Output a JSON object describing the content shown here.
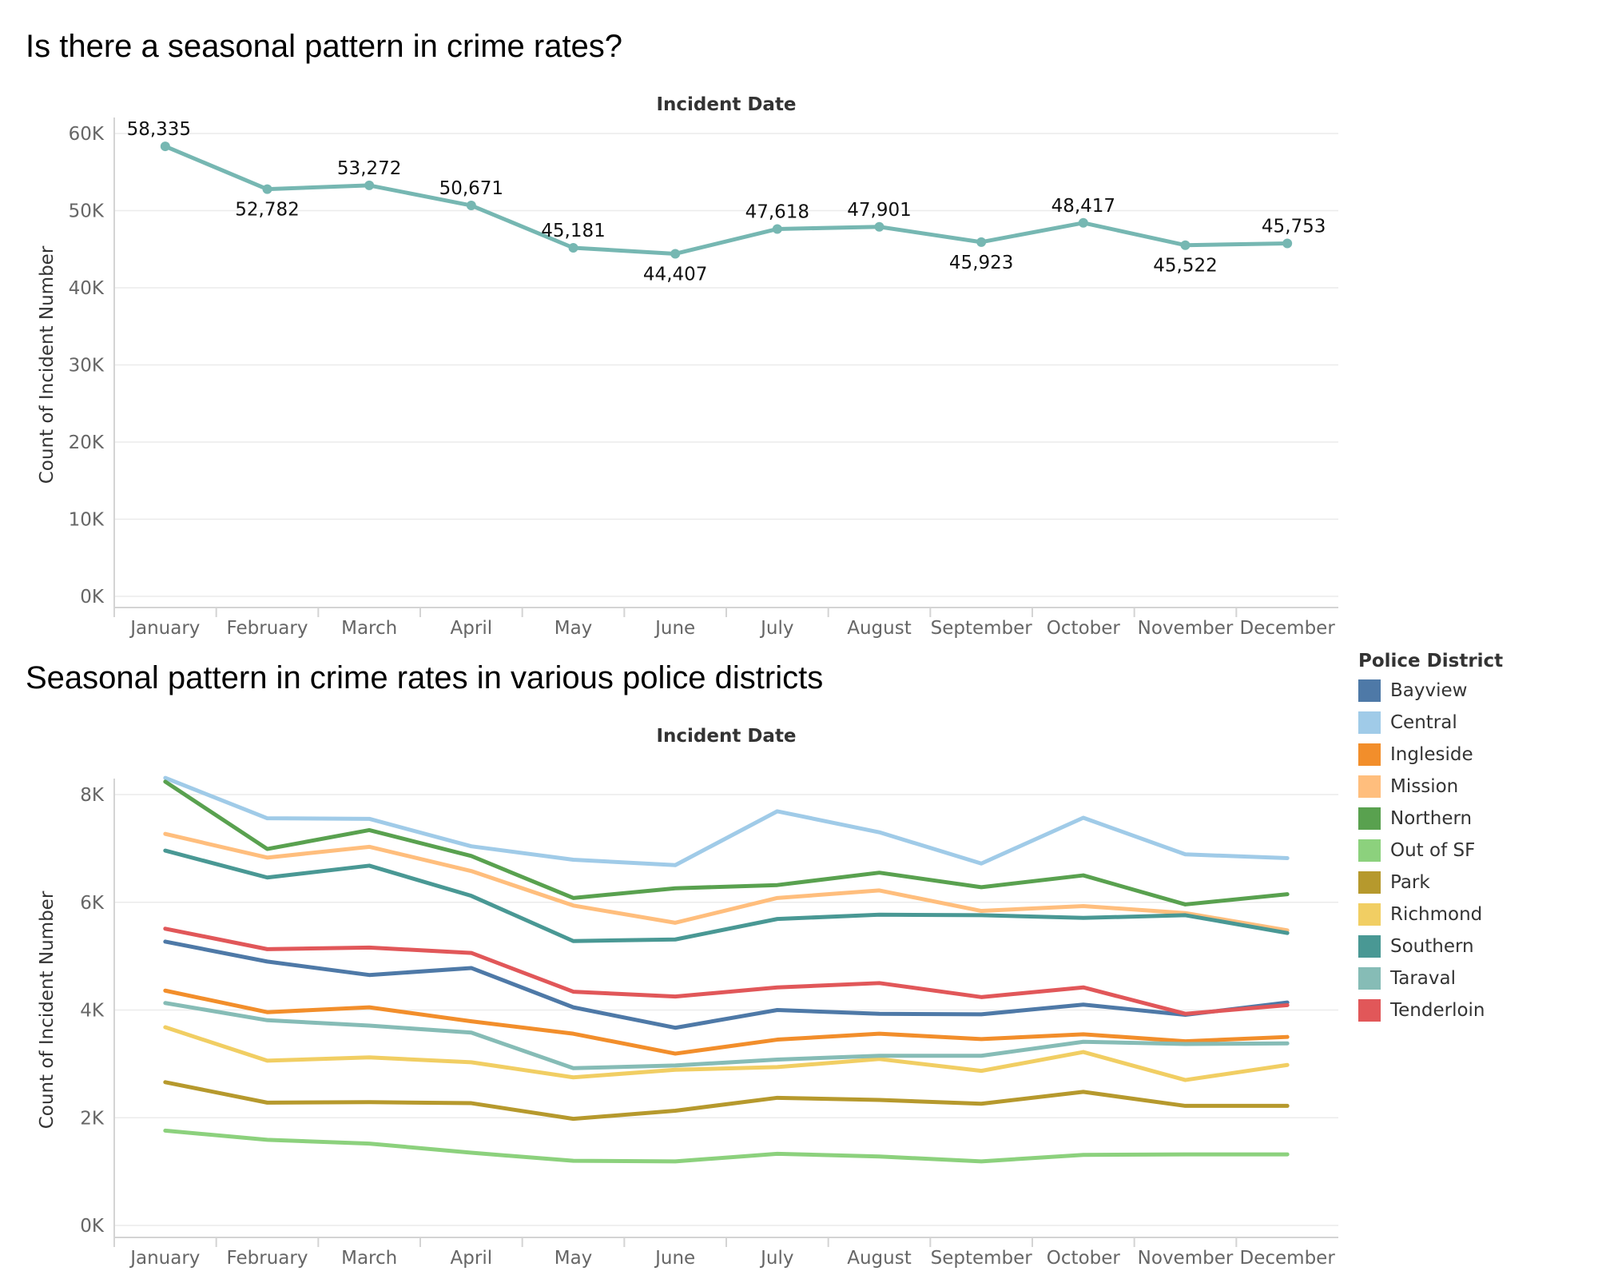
{
  "titles": {
    "top": "Is there a seasonal pattern in crime rates?",
    "bottom": "Seasonal pattern in crime rates in various police districts"
  },
  "legend": {
    "title": "Police District"
  },
  "chart_data": [
    {
      "type": "line",
      "title": "Is there a seasonal pattern in crime rates?",
      "header": "Incident Date",
      "ylabel": "Count of Incident Number",
      "categories": [
        "January",
        "February",
        "March",
        "April",
        "May",
        "June",
        "July",
        "August",
        "September",
        "October",
        "November",
        "December"
      ],
      "ylim": [
        0,
        60000
      ],
      "yticks": [
        0,
        10000,
        20000,
        30000,
        40000,
        50000,
        60000
      ],
      "ytick_labels": [
        "0K",
        "10K",
        "20K",
        "30K",
        "40K",
        "50K",
        "60K"
      ],
      "color": "#76b7b2",
      "series": [
        {
          "values": [
            58335,
            52782,
            53272,
            50671,
            45181,
            44407,
            47618,
            47901,
            45923,
            48417,
            45522,
            45753
          ],
          "labels": [
            "58,335",
            "52,782",
            "53,272",
            "50,671",
            "45,181",
            "44,407",
            "47,618",
            "47,901",
            "45,923",
            "48,417",
            "45,522",
            "45,753"
          ]
        }
      ],
      "grid": true
    },
    {
      "type": "line",
      "title": "Seasonal pattern in crime rates in various police districts",
      "header": "Incident Date",
      "ylabel": "Count of Incident Number",
      "categories": [
        "January",
        "February",
        "March",
        "April",
        "May",
        "June",
        "July",
        "August",
        "September",
        "October",
        "November",
        "December"
      ],
      "ylim": [
        0,
        8000
      ],
      "yticks": [
        0,
        2000,
        4000,
        6000,
        8000
      ],
      "ytick_labels": [
        "0K",
        "2K",
        "4K",
        "6K",
        "8K"
      ],
      "legend": "right",
      "grid": true,
      "series": [
        {
          "name": "Bayview",
          "color": "#4e79a7",
          "values": [
            5270,
            4900,
            4650,
            4780,
            4050,
            3670,
            4000,
            3930,
            3920,
            4100,
            3910,
            4140
          ]
        },
        {
          "name": "Central",
          "color": "#a0cbe8",
          "values": [
            8310,
            7560,
            7550,
            7040,
            6790,
            6690,
            7690,
            7300,
            6720,
            7570,
            6890,
            6820
          ]
        },
        {
          "name": "Ingleside",
          "color": "#f28e2b",
          "values": [
            4360,
            3960,
            4050,
            3790,
            3560,
            3190,
            3450,
            3560,
            3460,
            3550,
            3420,
            3500
          ]
        },
        {
          "name": "Mission",
          "color": "#ffbe7d",
          "values": [
            7270,
            6830,
            7030,
            6580,
            5940,
            5620,
            6080,
            6220,
            5840,
            5930,
            5800,
            5480
          ]
        },
        {
          "name": "Northern",
          "color": "#59a14f",
          "values": [
            8240,
            6990,
            7340,
            6860,
            6080,
            6260,
            6320,
            6550,
            6280,
            6500,
            5960,
            6150
          ]
        },
        {
          "name": "Out of SF",
          "color": "#8cd17d",
          "values": [
            1760,
            1590,
            1520,
            1350,
            1200,
            1190,
            1330,
            1280,
            1190,
            1310,
            1320,
            1320
          ]
        },
        {
          "name": "Park",
          "color": "#b6992d",
          "values": [
            2660,
            2280,
            2290,
            2270,
            1980,
            2130,
            2370,
            2330,
            2260,
            2480,
            2220,
            2220
          ]
        },
        {
          "name": "Richmond",
          "color": "#f1ce63",
          "values": [
            3680,
            3060,
            3120,
            3030,
            2750,
            2890,
            2940,
            3090,
            2870,
            3220,
            2700,
            2980
          ]
        },
        {
          "name": "Southern",
          "color": "#499894",
          "values": [
            6960,
            6460,
            6680,
            6120,
            5280,
            5310,
            5690,
            5770,
            5760,
            5710,
            5760,
            5430
          ]
        },
        {
          "name": "Taraval",
          "color": "#86bcb6",
          "values": [
            4130,
            3810,
            3710,
            3580,
            2920,
            2970,
            3080,
            3150,
            3150,
            3410,
            3370,
            3380
          ]
        },
        {
          "name": "Tenderloin",
          "color": "#e15759",
          "values": [
            5510,
            5130,
            5160,
            5060,
            4340,
            4250,
            4420,
            4500,
            4240,
            4420,
            3930,
            4090
          ]
        }
      ]
    }
  ]
}
